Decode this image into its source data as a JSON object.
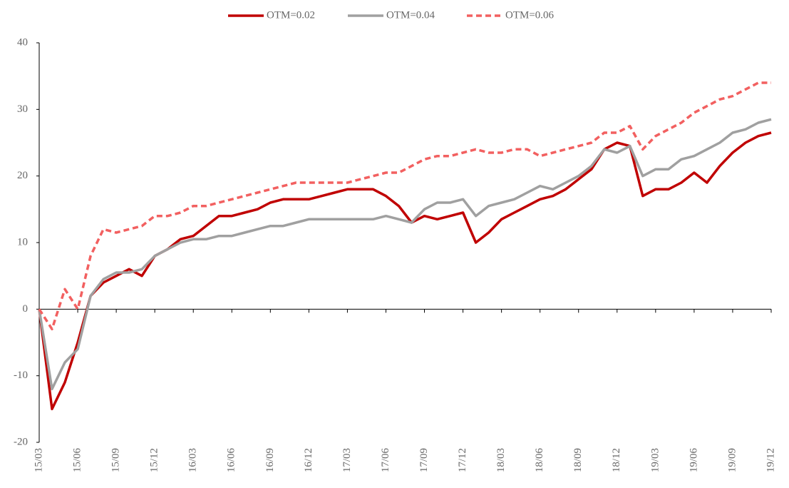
{
  "chart_data": {
    "type": "line",
    "categories": [
      "15/03",
      null,
      null,
      "15/06",
      null,
      null,
      "15/09",
      null,
      null,
      "15/12",
      null,
      null,
      "16/03",
      null,
      null,
      "16/06",
      null,
      null,
      "16/09",
      null,
      null,
      "16/12",
      null,
      null,
      "17/03",
      null,
      null,
      "17/06",
      null,
      null,
      "17/09",
      null,
      null,
      "17/12",
      null,
      null,
      "18/03",
      null,
      null,
      "18/06",
      null,
      null,
      "18/09",
      null,
      null,
      "18/12",
      null,
      null,
      "19/03",
      null,
      null,
      "19/06",
      null,
      null,
      "19/09",
      null,
      null,
      "19/12"
    ],
    "series": [
      {
        "name": "OTM=0.02",
        "color": "#c00000",
        "style": "solid",
        "values": [
          0,
          -15,
          -11,
          -5,
          2,
          4,
          5,
          6,
          5,
          8,
          9,
          10.5,
          11,
          12.5,
          14,
          14,
          14.5,
          15,
          16,
          16.5,
          16.5,
          16.5,
          17,
          17.5,
          18,
          18,
          18,
          17,
          15.5,
          13,
          14,
          13.5,
          14,
          14.5,
          10,
          11.5,
          13.5,
          14.5,
          15.5,
          16.5,
          17,
          18,
          19.5,
          21,
          24,
          25,
          24.5,
          17,
          18,
          18,
          19,
          20.5,
          19,
          21.5,
          23.5,
          25,
          26,
          26.5
        ]
      },
      {
        "name": "OTM=0.04",
        "color": "#a0a0a0",
        "style": "solid",
        "values": [
          0,
          -12,
          -8,
          -6,
          2,
          4.5,
          5.5,
          5.5,
          6,
          8,
          9,
          10,
          10.5,
          10.5,
          11,
          11,
          11.5,
          12,
          12.5,
          12.5,
          13,
          13.5,
          13.5,
          13.5,
          13.5,
          13.5,
          13.5,
          14,
          13.5,
          13,
          15,
          16,
          16,
          16.5,
          14,
          15.5,
          16,
          16.5,
          17.5,
          18.5,
          18,
          19,
          20,
          21.5,
          24,
          23.5,
          24.5,
          20,
          21,
          21,
          22.5,
          23,
          24,
          25,
          26.5,
          27,
          28,
          28.5
        ]
      },
      {
        "name": "OTM=0.06",
        "color": "#f26060",
        "style": "dashed",
        "values": [
          0,
          -3,
          3,
          0,
          8,
          12,
          11.5,
          12,
          12.5,
          14,
          14,
          14.5,
          15.5,
          15.5,
          16,
          16.5,
          17,
          17.5,
          18,
          18.5,
          19,
          19,
          19,
          19,
          19,
          19.5,
          20,
          20.5,
          20.5,
          21.5,
          22.5,
          23,
          23,
          23.5,
          24,
          23.5,
          23.5,
          24,
          24,
          23,
          23.5,
          24,
          24.5,
          25,
          26.5,
          26.5,
          27.5,
          24,
          26,
          27,
          28,
          29.5,
          30.5,
          31.5,
          32,
          33,
          34,
          34
        ]
      }
    ],
    "ylim": [
      -20,
      40
    ],
    "yticks": [
      -20,
      -10,
      0,
      10,
      20,
      30,
      40
    ],
    "legend": "top"
  }
}
